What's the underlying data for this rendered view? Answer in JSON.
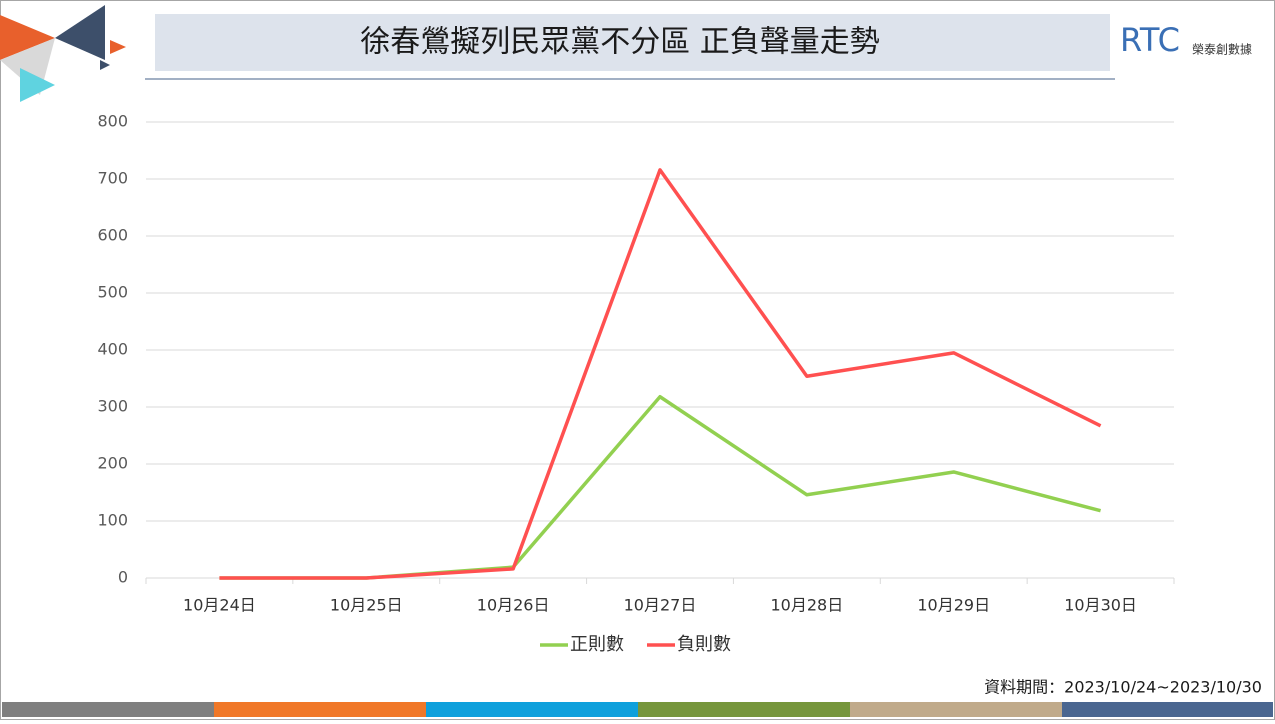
{
  "brand": {
    "name": "RTC",
    "subtitle": "榮泰創數據"
  },
  "chart_data": {
    "type": "line",
    "title": "徐春鶯擬列民眾黨不分區 正負聲量走勢",
    "categories": [
      "10月24日",
      "10月25日",
      "10月26日",
      "10月27日",
      "10月28日",
      "10月29日",
      "10月30日"
    ],
    "series": [
      {
        "name": "正則數",
        "color": "#92d050",
        "values": [
          0,
          0,
          19,
          318,
          146,
          186,
          118
        ]
      },
      {
        "name": "負則數",
        "color": "#ff5050",
        "values": [
          0,
          0,
          16,
          716,
          354,
          395,
          267
        ]
      }
    ],
    "ylim": [
      0,
      800
    ],
    "yticks": [
      0,
      100,
      200,
      300,
      400,
      500,
      600,
      700,
      800
    ],
    "grid": true,
    "legend": "bottom",
    "note": "資料期間：2023/10/24~2023/10/30"
  }
}
